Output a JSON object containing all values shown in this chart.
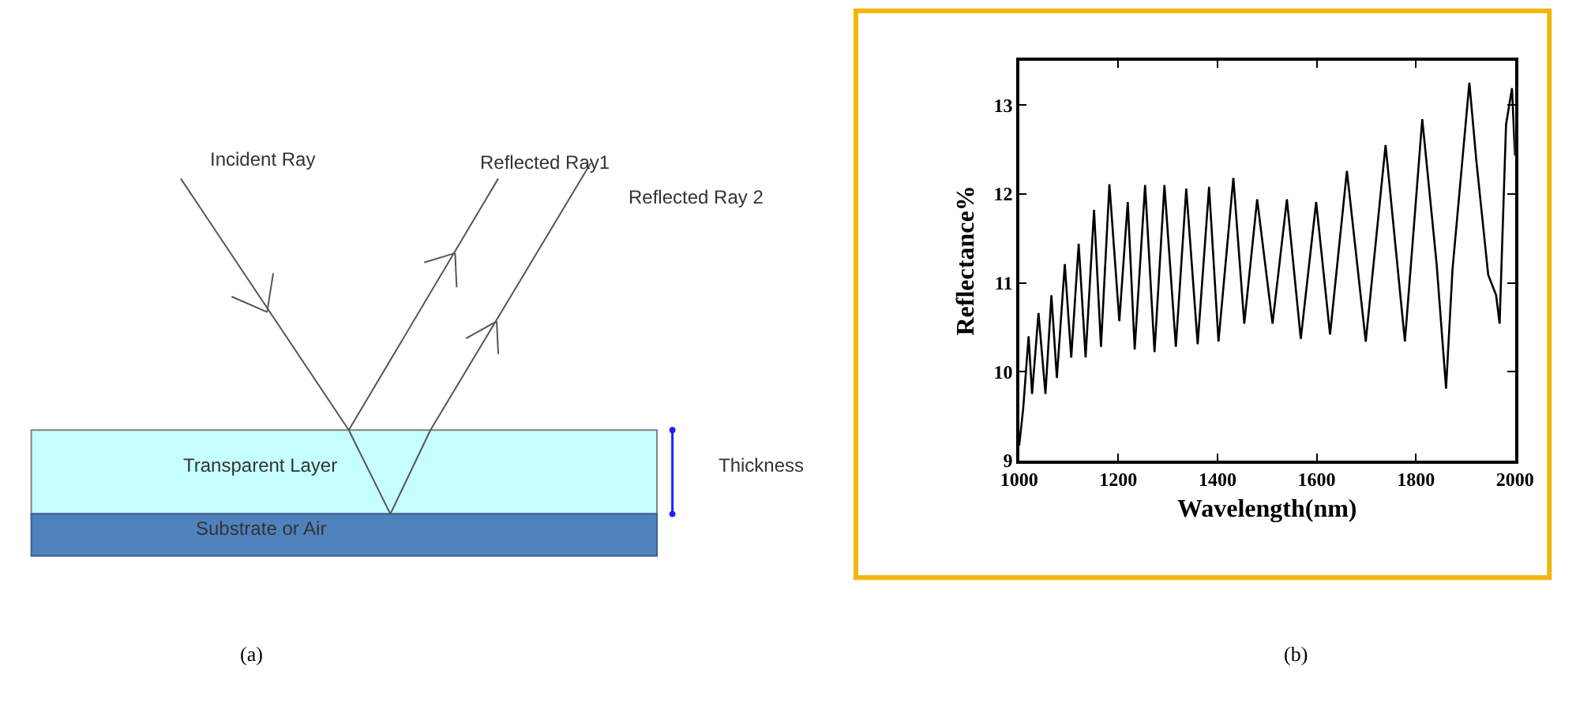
{
  "chart_data": [
    {
      "type": "other",
      "annotations": [
        "Incident Ray",
        "Reflected Ray1",
        "Reflected Ray 2",
        "Transparent Layer",
        "Substrate or Air",
        "Thickness",
        "(a)"
      ]
    },
    {
      "type": "line",
      "xlabel": "Wavelength(nm)",
      "ylabel": "Reflectance%",
      "annotations": [
        "(b)"
      ],
      "xlim": [
        1000,
        2000
      ],
      "ylim": [
        9,
        13.5
      ],
      "xticks": [
        1000,
        1200,
        1400,
        1600,
        1800,
        2000
      ],
      "yticks": [
        9,
        10,
        11,
        12,
        13
      ],
      "marker": "none",
      "line_style": "solid",
      "series": [
        {
          "color": "#000000",
          "x": [
            1000,
            1008,
            1019,
            1026,
            1039,
            1053,
            1065,
            1076,
            1092,
            1105,
            1120,
            1134,
            1151,
            1165,
            1182,
            1202,
            1219,
            1233,
            1254,
            1273,
            1293,
            1316,
            1337,
            1360,
            1383,
            1402,
            1432,
            1454,
            1480,
            1511,
            1540,
            1568,
            1599,
            1627,
            1661,
            1699,
            1739,
            1778,
            1813,
            1842,
            1861,
            1874,
            1908,
            1922,
            1946,
            1962,
            1969,
            1982,
            1994,
            2000
          ],
          "values": [
            9.17,
            9.58,
            10.4,
            9.75,
            10.66,
            9.75,
            10.86,
            9.93,
            11.21,
            10.16,
            11.44,
            10.16,
            11.82,
            10.28,
            12.11,
            10.57,
            11.91,
            10.25,
            12.1,
            10.22,
            12.1,
            10.28,
            12.06,
            10.31,
            12.08,
            10.34,
            12.18,
            10.54,
            11.94,
            10.54,
            11.94,
            10.37,
            11.91,
            10.42,
            12.26,
            10.34,
            12.55,
            10.34,
            12.84,
            11.21,
            9.81,
            11.15,
            13.25,
            12.38,
            11.09,
            10.86,
            10.54,
            12.78,
            13.19,
            12.43
          ]
        }
      ]
    }
  ]
}
